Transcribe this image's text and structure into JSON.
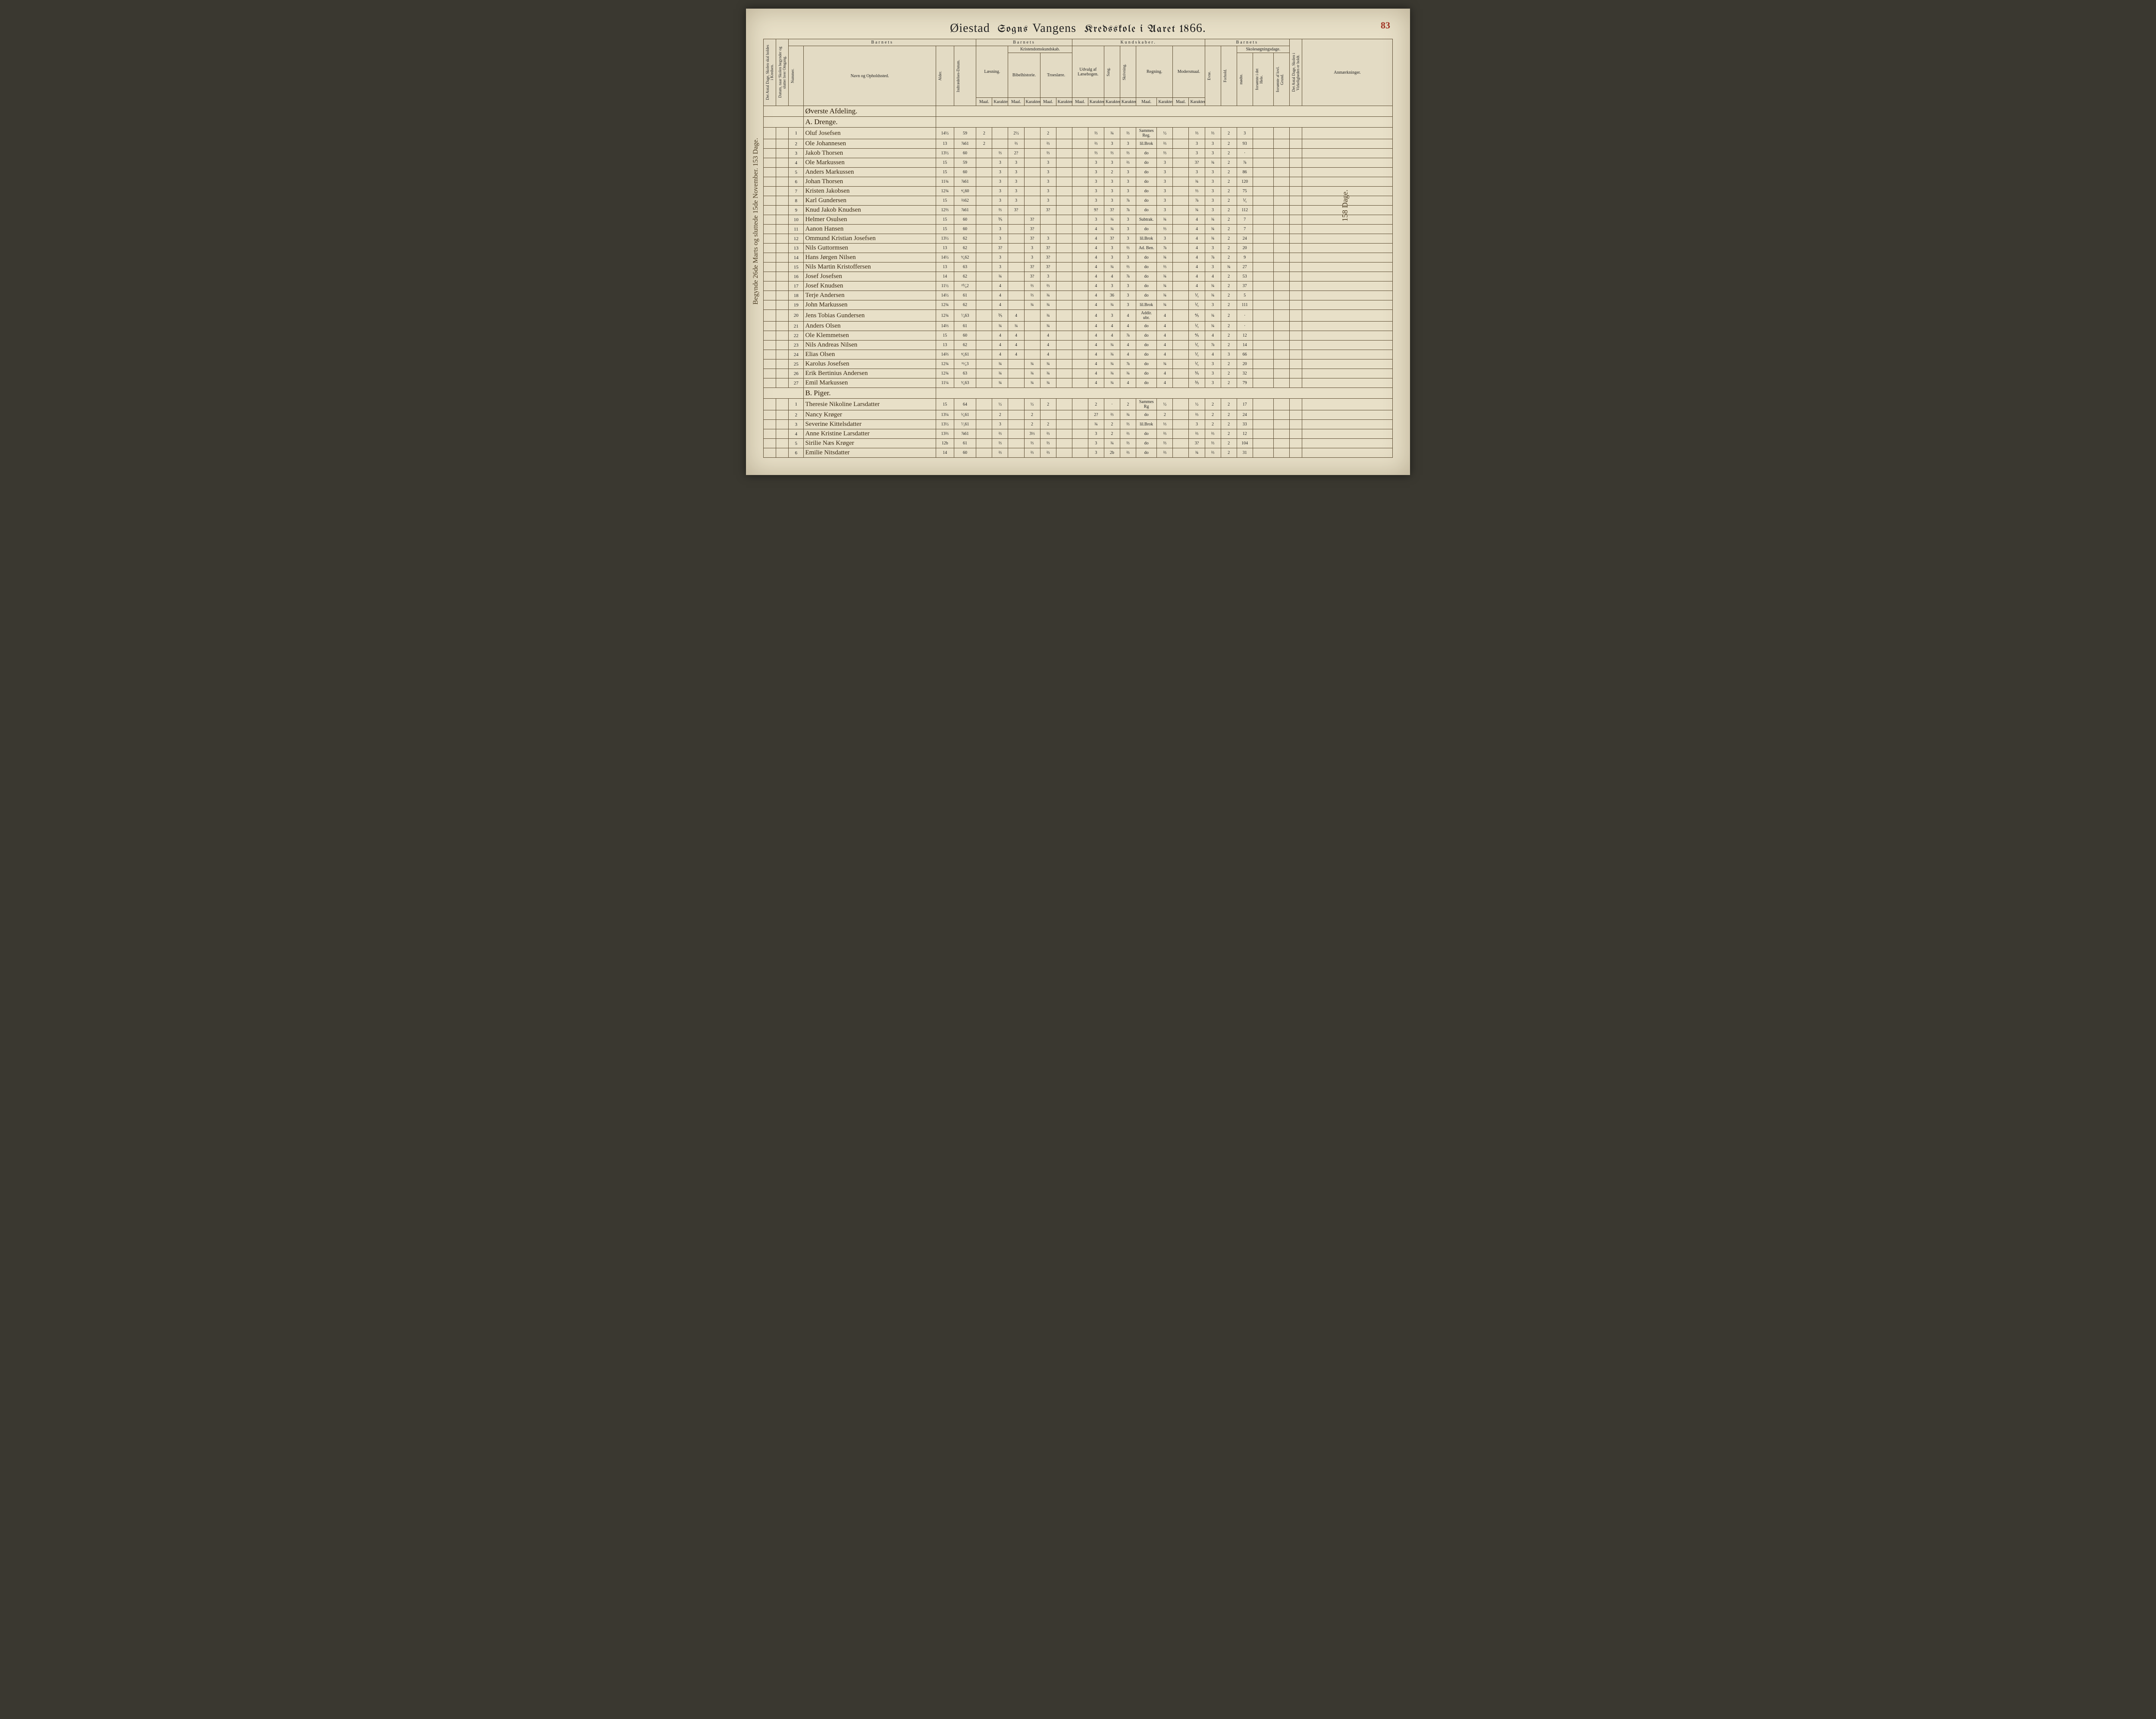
{
  "page_number": "83",
  "title": {
    "parish_script": "Øiestad",
    "sogns": "Sogns",
    "sub_script": "Vangens",
    "kreds": "Kredsskole i Aaret 18",
    "year_suffix": "66."
  },
  "left_margin": "Begynde 26de Marts og sluttede 15de November.  153 Dage.",
  "right_margin": "158 Dage.",
  "group_headers": {
    "barnets1": "Barnets",
    "barnets2": "Barnets",
    "kundskaber": "Kundskaber.",
    "barnets3": "Barnets",
    "anm": "Anmærkninger."
  },
  "sub_headers": {
    "antal_dage": "Det Antal Dage, Skolen skal holdes i Kredsen.",
    "datum": "Datum, naar Skolen begynder og slutter hver Omgang.",
    "nummer": "Nummer.",
    "navn": "Navn og Opholdssted.",
    "alder": "Alder.",
    "indtr": "Indtrædelses-Datum.",
    "laesning": "Læsning.",
    "kristendom": "Kristendomskundskab.",
    "bibel": "Bibelhistorie.",
    "troes": "Troeslære.",
    "udvalg": "Udvalg af Læsebogen.",
    "sang": "Sang.",
    "skriv": "Skrivning.",
    "regning": "Regning.",
    "modersmaal": "Modersmaal.",
    "skolesog": "Skolesøgningsdage.",
    "maal": "Maal.",
    "kar": "Karakter.",
    "evne": "Evne.",
    "forhold": "Forhold.",
    "modte": "mødte.",
    "fors1": "forsømte i det Hele.",
    "fors2": "forsømte af lovl. Grund.",
    "virkelig": "Det Antal Dage, Skolen i Virkeligheden er holdt."
  },
  "sections": {
    "a_head1": "Øverste Afdeling.",
    "a_head2": "A. Drenge.",
    "b_head": "B. Piger."
  },
  "rows_a": [
    {
      "n": "1",
      "name": "Oluf Josefsen",
      "age": "14½",
      "date": "59",
      "l_m": "2",
      "l_k": "",
      "b_m": "2½",
      "b_k": "",
      "t_m": "2",
      "u_m": "",
      "u_k": "⅔",
      "sa": "¾",
      "sk": "⅔",
      "r_m": "Sammes Reg.",
      "r_k": "½",
      "mm": "",
      "mk": "⅔",
      "ev": "⅔",
      "fo": "2",
      "md": "3",
      "f1": "",
      "f2": ""
    },
    {
      "n": "2",
      "name": "Ole Johannesen",
      "age": "13",
      "date": "⅞61",
      "l_m": "2",
      "l_k": "",
      "b_m": "⅔",
      "b_k": "",
      "t_m": "⅔",
      "u_m": "",
      "u_k": "⅔",
      "sa": "3",
      "sk": "3",
      "r_m": "lil.Brok",
      "r_k": "⅔",
      "mm": "",
      "mk": "3",
      "ev": "3",
      "fo": "2",
      "md": "93",
      "f1": "",
      "f2": ""
    },
    {
      "n": "3",
      "name": "Jakob Thorsen",
      "age": "13½",
      "date": "60",
      "l_m": "",
      "l_k": "⅔",
      "b_m": "2?",
      "b_k": "",
      "t_m": "⅔",
      "u_m": "",
      "u_k": "⅔",
      "sa": "⅔",
      "sk": "⅔",
      "r_m": "do",
      "r_k": "⅔",
      "mm": "",
      "mk": "3",
      "ev": "3",
      "fo": "2",
      "md": "·",
      "f1": "",
      "f2": ""
    },
    {
      "n": "4",
      "name": "Ole Markussen",
      "age": "15",
      "date": "59",
      "l_m": "",
      "l_k": "3",
      "b_m": "3",
      "b_k": "",
      "t_m": "3",
      "u_m": "",
      "u_k": "3",
      "sa": "3",
      "sk": "⅔",
      "r_m": "do",
      "r_k": "3",
      "mm": "",
      "mk": "3?",
      "ev": "¾",
      "fo": "2",
      "md": "⅞",
      "f1": "",
      "f2": ""
    },
    {
      "n": "5",
      "name": "Anders Markussen",
      "age": "15",
      "date": "60",
      "l_m": "",
      "l_k": "3",
      "b_m": "3",
      "b_k": "",
      "t_m": "3",
      "u_m": "",
      "u_k": "3",
      "sa": "2",
      "sk": "3",
      "r_m": "do",
      "r_k": "3",
      "mm": "",
      "mk": "3",
      "ev": "3",
      "fo": "2",
      "md": "86",
      "f1": "",
      "f2": ""
    },
    {
      "n": "6",
      "name": "Johan Thorsen",
      "age": "11¾",
      "date": "⅞61",
      "l_m": "",
      "l_k": "3",
      "b_m": "3",
      "b_k": "",
      "t_m": "3",
      "u_m": "",
      "u_k": "3",
      "sa": "3",
      "sk": "3",
      "r_m": "do",
      "r_k": "3",
      "mm": "",
      "mk": "¾",
      "ev": "3",
      "fo": "2",
      "md": "120",
      "f1": "",
      "f2": ""
    },
    {
      "n": "7",
      "name": "Kristen Jakobsen",
      "age": "12¾",
      "date": "⁴⁄₆60",
      "l_m": "",
      "l_k": "3",
      "b_m": "3",
      "b_k": "",
      "t_m": "3",
      "u_m": "",
      "u_k": "3",
      "sa": "3",
      "sk": "3",
      "r_m": "do",
      "r_k": "3",
      "mm": "",
      "mk": "⅔",
      "ev": "3",
      "fo": "2",
      "md": "75",
      "f1": "",
      "f2": ""
    },
    {
      "n": "8",
      "name": "Karl Gundersen",
      "age": "15",
      "date": "⅔62",
      "l_m": "",
      "l_k": "3",
      "b_m": "3",
      "b_k": "",
      "t_m": "3",
      "u_m": "",
      "u_k": "3",
      "sa": "3",
      "sk": "⅞",
      "r_m": "do",
      "r_k": "3",
      "mm": "",
      "mk": "⅞",
      "ev": "3",
      "fo": "2",
      "md": "⅟₅",
      "f1": "",
      "f2": ""
    },
    {
      "n": "9",
      "name": "Knud Jakob Knudsen",
      "age": "12⅔",
      "date": "⅞61",
      "l_m": "",
      "l_k": "⅔",
      "b_m": "3?",
      "b_k": "",
      "t_m": "3?",
      "u_m": "",
      "u_k": "9?",
      "sa": "3?",
      "sk": "⅞",
      "r_m": "do",
      "r_k": "3",
      "mm": "",
      "mk": "¾",
      "ev": "3",
      "fo": "2",
      "md": "112",
      "f1": "",
      "f2": ""
    },
    {
      "n": "10",
      "name": "Helmer Osulsen",
      "age": "15",
      "date": "60",
      "l_m": "",
      "l_k": "⅗",
      "b_m": "",
      "b_k": "3?",
      "t_m": "",
      "u_m": "",
      "u_k": "3",
      "sa": "¾",
      "sk": "3",
      "r_m": "Subtrak.",
      "r_k": "¾",
      "mm": "",
      "mk": "4",
      "ev": "¾",
      "fo": "2",
      "md": "7",
      "f1": "",
      "f2": ""
    },
    {
      "n": "11",
      "name": "Aanon Hansen",
      "age": "15",
      "date": "60",
      "l_m": "",
      "l_k": "3",
      "b_m": "",
      "b_k": "3?",
      "t_m": "",
      "u_m": "",
      "u_k": "4",
      "sa": "¾",
      "sk": "3",
      "r_m": "do",
      "r_k": "⅔",
      "mm": "",
      "mk": "4",
      "ev": "¾",
      "fo": "2",
      "md": "7",
      "f1": "",
      "f2": ""
    },
    {
      "n": "12",
      "name": "Ommund Kristian Josefsen",
      "age": "13½",
      "date": "62",
      "l_m": "",
      "l_k": "3",
      "b_m": "",
      "b_k": "3?",
      "t_m": "3",
      "u_m": "",
      "u_k": "4",
      "sa": "3?",
      "sk": "3",
      "r_m": "lil.Brok",
      "r_k": "3",
      "mm": "",
      "mk": "4",
      "ev": "¾",
      "fo": "2",
      "md": "24",
      "f1": "",
      "f2": ""
    },
    {
      "n": "13",
      "name": "Nils Guttormsen",
      "age": "13",
      "date": "62",
      "l_m": "",
      "l_k": "3?",
      "b_m": "",
      "b_k": "3",
      "t_m": "3?",
      "u_m": "",
      "u_k": "4",
      "sa": "3",
      "sk": "⅔",
      "r_m": "Ad. Ben.",
      "r_k": "⅞",
      "mm": "",
      "mk": "4",
      "ev": "3",
      "fo": "2",
      "md": "20",
      "f1": "",
      "f2": ""
    },
    {
      "n": "14",
      "name": "Hans Jørgen Nilsen",
      "age": "14½",
      "date": "⁹⁄₆62",
      "l_m": "",
      "l_k": "3",
      "b_m": "",
      "b_k": "3",
      "t_m": "3?",
      "u_m": "",
      "u_k": "4",
      "sa": "3",
      "sk": "3",
      "r_m": "do",
      "r_k": "¾",
      "mm": "",
      "mk": "4",
      "ev": "⅞",
      "fo": "2",
      "md": "9",
      "f1": "",
      "f2": ""
    },
    {
      "n": "15",
      "name": "Nils Martin Kristoffersen",
      "age": "13",
      "date": "63",
      "l_m": "",
      "l_k": "3",
      "b_m": "",
      "b_k": "3?",
      "t_m": "3?",
      "u_m": "",
      "u_k": "4",
      "sa": "¾",
      "sk": "⅔",
      "r_m": "do",
      "r_k": "⅔",
      "mm": "",
      "mk": "4",
      "ev": "3",
      "fo": "¾",
      "md": "27",
      "f1": "",
      "f2": ""
    },
    {
      "n": "16",
      "name": "Josef Josefsen",
      "age": "14",
      "date": "62",
      "l_m": "",
      "l_k": "¾",
      "b_m": "",
      "b_k": "3?",
      "t_m": "3",
      "u_m": "",
      "u_k": "4",
      "sa": "4",
      "sk": "⅞",
      "r_m": "do",
      "r_k": "¾",
      "mm": "",
      "mk": "4",
      "ev": "4",
      "fo": "2",
      "md": "53",
      "f1": "",
      "f2": ""
    },
    {
      "n": "17",
      "name": "Josef Knudsen",
      "age": "11½",
      "date": "¹⁰⁄₆2",
      "l_m": "",
      "l_k": "4",
      "b_m": "",
      "b_k": "⅔",
      "t_m": "⅔",
      "u_m": "",
      "u_k": "4",
      "sa": "3",
      "sk": "3",
      "r_m": "do",
      "r_k": "¾",
      "mm": "",
      "mk": "4",
      "ev": "¾",
      "fo": "2",
      "md": "37",
      "f1": "",
      "f2": ""
    },
    {
      "n": "18",
      "name": "Terje Andersen",
      "age": "14½",
      "date": "61",
      "l_m": "",
      "l_k": "4",
      "b_m": "",
      "b_k": "⅔",
      "t_m": "¾",
      "u_m": "",
      "u_k": "4",
      "sa": "36",
      "sk": "3",
      "r_m": "do",
      "r_k": "¾",
      "mm": "",
      "mk": "⅟₅",
      "ev": "¾",
      "fo": "2",
      "md": "5",
      "f1": "",
      "f2": ""
    },
    {
      "n": "19",
      "name": "John Markussen",
      "age": "12¾",
      "date": "62",
      "l_m": "",
      "l_k": "4",
      "b_m": "",
      "b_k": "¾",
      "t_m": "¾",
      "u_m": "",
      "u_k": "4",
      "sa": "¾",
      "sk": "3",
      "r_m": "lil.Brok",
      "r_k": "¾",
      "mm": "",
      "mk": "⅟₅",
      "ev": "3",
      "fo": "2",
      "md": "111",
      "f1": "",
      "f2": ""
    },
    {
      "n": "20",
      "name": "Jens Tobias Gundersen",
      "age": "12¾",
      "date": "⁷⁄₄63",
      "l_m": "",
      "l_k": "⅗",
      "b_m": "4",
      "b_k": "",
      "t_m": "¾",
      "u_m": "",
      "u_k": "4",
      "sa": "3",
      "sk": "4",
      "r_m": "Addir. ubr.",
      "r_k": "4",
      "mm": "",
      "mk": "⅘",
      "ev": "¾",
      "fo": "2",
      "md": "·",
      "f1": "",
      "f2": ""
    },
    {
      "n": "21",
      "name": "Anders Olsen",
      "age": "14⅓",
      "date": "61",
      "l_m": "",
      "l_k": "¾",
      "b_m": "¾",
      "b_k": "",
      "t_m": "¾",
      "u_m": "",
      "u_k": "4",
      "sa": "4",
      "sk": "4",
      "r_m": "do",
      "r_k": "4",
      "mm": "",
      "mk": "⅟₅",
      "ev": "¾",
      "fo": "2",
      "md": "·",
      "f1": "",
      "f2": ""
    },
    {
      "n": "22",
      "name": "Ole Klemmetsen",
      "age": "15",
      "date": "60",
      "l_m": "",
      "l_k": "4",
      "b_m": "4",
      "b_k": "",
      "t_m": "4",
      "u_m": "",
      "u_k": "4",
      "sa": "4",
      "sk": "⅞",
      "r_m": "do",
      "r_k": "4",
      "mm": "",
      "mk": "⅘",
      "ev": "4",
      "fo": "2",
      "md": "12",
      "f1": "",
      "f2": ""
    },
    {
      "n": "23",
      "name": "Nils Andreas Nilsen",
      "age": "13",
      "date": "62",
      "l_m": "",
      "l_k": "4",
      "b_m": "4",
      "b_k": "",
      "t_m": "4",
      "u_m": "",
      "u_k": "4",
      "sa": "¾",
      "sk": "4",
      "r_m": "do",
      "r_k": "4",
      "mm": "",
      "mk": "⅟₅",
      "ev": "⅞",
      "fo": "2",
      "md": "14",
      "f1": "",
      "f2": ""
    },
    {
      "n": "24",
      "name": "Elias Olsen",
      "age": "14⅔",
      "date": "⁴⁄₆61",
      "l_m": "",
      "l_k": "4",
      "b_m": "4",
      "b_k": "",
      "t_m": "4",
      "u_m": "",
      "u_k": "4",
      "sa": "¾",
      "sk": "4",
      "r_m": "do",
      "r_k": "4",
      "mm": "",
      "mk": "⅟₅",
      "ev": "4",
      "fo": "3",
      "md": "66",
      "f1": "",
      "f2": ""
    },
    {
      "n": "25",
      "name": "Karolus Josefsen",
      "age": "12¾",
      "date": "¹⁶⁄₆3",
      "l_m": "",
      "l_k": "¾",
      "b_m": "",
      "b_k": "¾",
      "t_m": "¾",
      "u_m": "",
      "u_k": "4",
      "sa": "¾",
      "sk": "⅞",
      "r_m": "do",
      "r_k": "¾",
      "mm": "",
      "mk": "⅟₅",
      "ev": "3",
      "fo": "2",
      "md": "20",
      "f1": "",
      "f2": ""
    },
    {
      "n": "26",
      "name": "Erik Bertinius Andersen",
      "age": "12¾",
      "date": "63",
      "l_m": "",
      "l_k": "¾",
      "b_m": "",
      "b_k": "¾",
      "t_m": "¾",
      "u_m": "",
      "u_k": "4",
      "sa": "¾",
      "sk": "¾",
      "r_m": "do",
      "r_k": "4",
      "mm": "",
      "mk": "⅗",
      "ev": "3",
      "fo": "2",
      "md": "32",
      "f1": "",
      "f2": ""
    },
    {
      "n": "27",
      "name": "Emil Markussen",
      "age": "11¼",
      "date": "⁹⁄₆63",
      "l_m": "",
      "l_k": "¾",
      "b_m": "",
      "b_k": "¾",
      "t_m": "¾",
      "u_m": "",
      "u_k": "4",
      "sa": "¾",
      "sk": "4",
      "r_m": "do",
      "r_k": "4",
      "mm": "",
      "mk": "⅗",
      "ev": "3",
      "fo": "2",
      "md": "79",
      "f1": "",
      "f2": ""
    }
  ],
  "rows_b": [
    {
      "n": "1",
      "name": "Theresie Nikoline Larsdatter",
      "age": "15",
      "date": "64",
      "l_m": "",
      "l_k": "½",
      "b_m": "",
      "b_k": "½",
      "t_m": "2",
      "u_m": "",
      "u_k": "2",
      "sa": "·",
      "sk": "2",
      "r_m": "Sammes Rg",
      "r_k": "½",
      "mm": "",
      "mk": "½",
      "ev": "2",
      "fo": "2",
      "md": "17",
      "f1": "",
      "f2": ""
    },
    {
      "n": "2",
      "name": "Nancy Krøger",
      "age": "13¼",
      "date": "⁵⁄₆61",
      "l_m": "",
      "l_k": "2",
      "b_m": "",
      "b_k": "2",
      "t_m": "",
      "u_m": "",
      "u_k": "2?",
      "sa": "⅔",
      "sk": "¾",
      "r_m": "do",
      "r_k": "2",
      "mm": "",
      "mk": "⅔",
      "ev": "2",
      "fo": "2",
      "md": "24",
      "f1": "",
      "f2": ""
    },
    {
      "n": "3",
      "name": "Severine Kittelsdatter",
      "age": "13½",
      "date": "⁷⁄₃61",
      "l_m": "",
      "l_k": "3",
      "b_m": "",
      "b_k": "2",
      "t_m": "2",
      "u_m": "",
      "u_k": "¾",
      "sa": "2",
      "sk": "⅔",
      "r_m": "lil.Brok",
      "r_k": "⅓",
      "mm": "",
      "mk": "3",
      "ev": "2",
      "fo": "2",
      "md": "33",
      "f1": "",
      "f2": ""
    },
    {
      "n": "4",
      "name": "Anne Kristine Larsdatter",
      "age": "13⅔",
      "date": "⅞61",
      "l_m": "",
      "l_k": "⅔",
      "b_m": "",
      "b_k": "3⅓",
      "t_m": "⅔",
      "u_m": "",
      "u_k": "3",
      "sa": "2",
      "sk": "⅔",
      "r_m": "do",
      "r_k": "⅔",
      "mm": "",
      "mk": "⅔",
      "ev": "⅔",
      "fo": "2",
      "md": "12",
      "f1": "",
      "f2": ""
    },
    {
      "n": "5",
      "name": "Sirilie Næs Krøger",
      "age": "12b",
      "date": "61",
      "l_m": "",
      "l_k": "⅔",
      "b_m": "",
      "b_k": "⅔",
      "t_m": "⅔",
      "u_m": "",
      "u_k": "3",
      "sa": "¾",
      "sk": "⅔",
      "r_m": "do",
      "r_k": "⅔",
      "mm": "",
      "mk": "3?",
      "ev": "⅔",
      "fo": "2",
      "md": "104",
      "f1": "",
      "f2": ""
    },
    {
      "n": "6",
      "name": "Emilie Nitsdatter",
      "age": "14",
      "date": "60",
      "l_m": "",
      "l_k": "⅔",
      "b_m": "",
      "b_k": "⅔",
      "t_m": "⅔",
      "u_m": "",
      "u_k": "3",
      "sa": "2b",
      "sk": "⅔",
      "r_m": "do",
      "r_k": "⅔",
      "mm": "",
      "mk": "¾",
      "ev": "⅔",
      "fo": "2",
      "md": "31",
      "f1": "",
      "f2": ""
    }
  ]
}
